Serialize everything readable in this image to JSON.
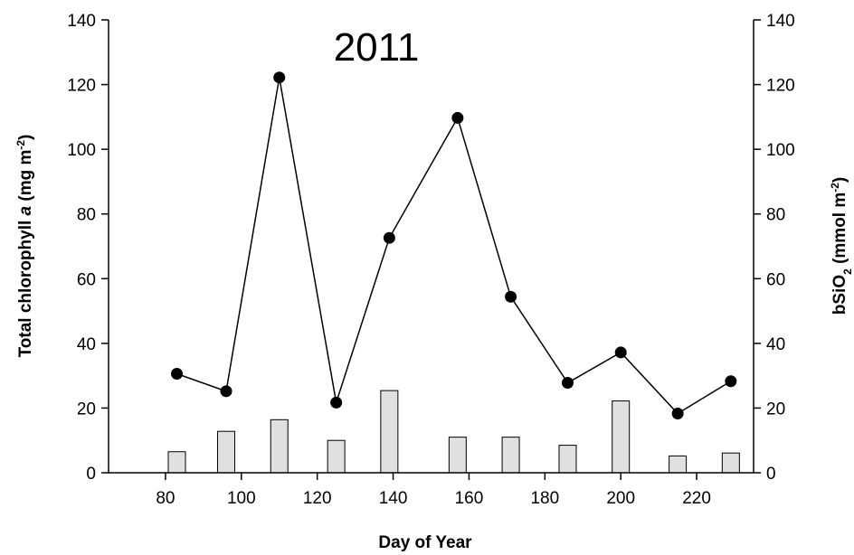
{
  "chart_data": {
    "type": "bar+line",
    "title": "2011",
    "xlabel": "Day of Year",
    "ylabel_left": {
      "text": "Total chlorophyll ",
      "italic": "a",
      "unit": " (mg m",
      "sup": "-2",
      "close": ")"
    },
    "ylabel_right": {
      "text": "bSiO",
      "sub": "2",
      "unit": " (mmol m",
      "sup": "-2",
      "close": ")"
    },
    "xlim": [
      65,
      235
    ],
    "ylim": [
      0,
      140
    ],
    "x_ticks": [
      80,
      100,
      120,
      140,
      160,
      180,
      200,
      220
    ],
    "y_ticks": [
      0,
      20,
      40,
      60,
      80,
      100,
      120,
      140
    ],
    "y2_ticks": [
      0,
      20,
      40,
      60,
      80,
      100,
      120,
      140
    ],
    "bars": {
      "axis": "right",
      "color": "#e0e0e0",
      "x": [
        83,
        96,
        110,
        125,
        139,
        157,
        171,
        186,
        200,
        215,
        229
      ],
      "values": [
        6.5,
        12.8,
        16.4,
        10.0,
        25.4,
        11.0,
        11.0,
        8.5,
        22.2,
        5.2,
        6.1
      ]
    },
    "line": {
      "axis": "left",
      "color": "#000000",
      "x": [
        83,
        96,
        110,
        125,
        139,
        157,
        171,
        186,
        200,
        215,
        229
      ],
      "values": [
        30.6,
        25.2,
        122.2,
        21.7,
        72.6,
        109.7,
        54.4,
        27.8,
        37.2,
        18.3,
        28.3
      ]
    }
  }
}
